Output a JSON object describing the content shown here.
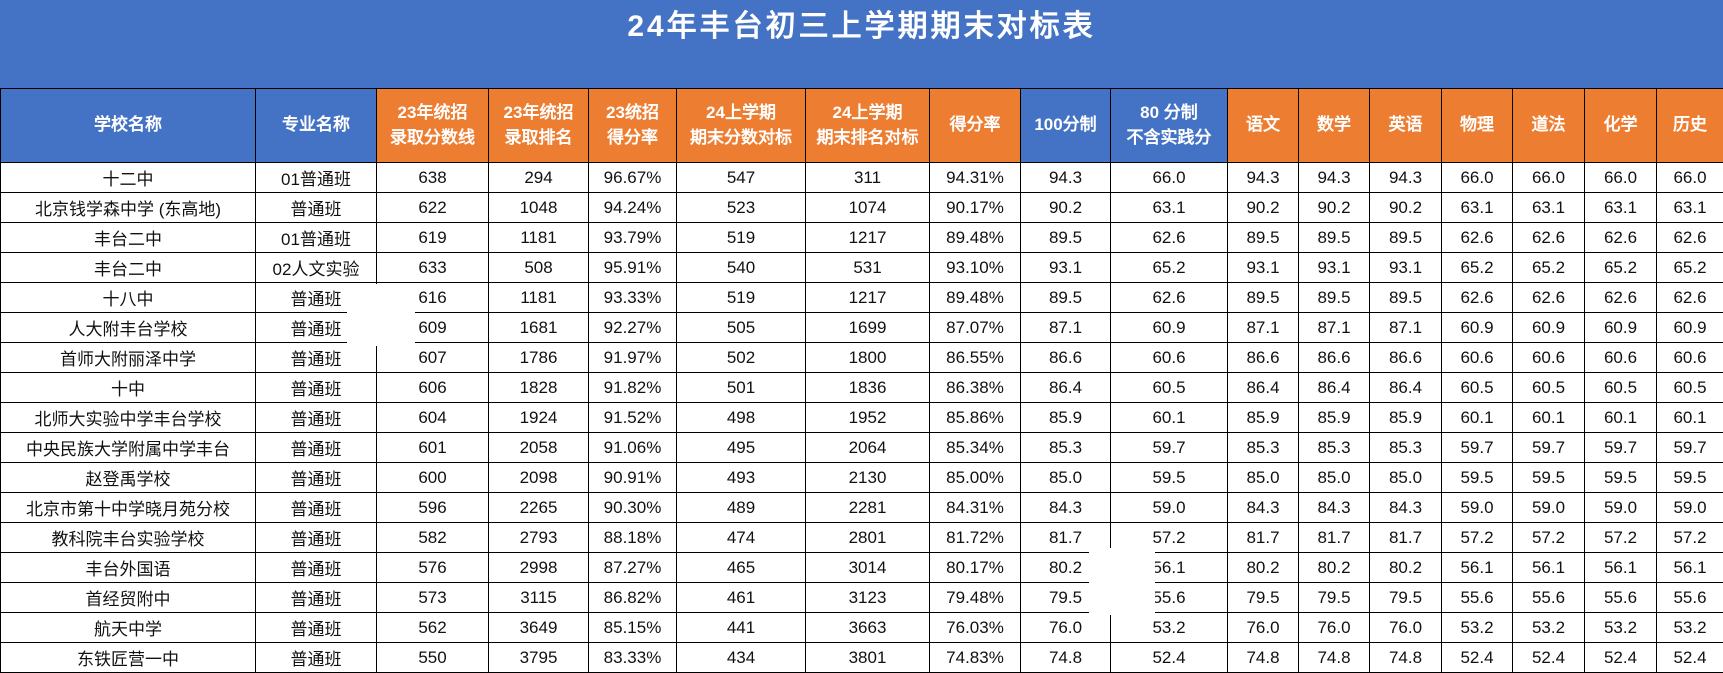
{
  "title": "24年丰台初三上学期期末对标表",
  "colors": {
    "header_blue": "#4472C4",
    "header_orange": "#ED7D31",
    "border": "#000000",
    "title_text": "#FFFFFF",
    "data_text": "#111111"
  },
  "table": {
    "columns": [
      {
        "label": "学校名称",
        "bg": "blue"
      },
      {
        "label": "专业名称",
        "bg": "blue"
      },
      {
        "label": "23年统招\n录取分数线",
        "bg": "orange"
      },
      {
        "label": "23年统招\n录取排名",
        "bg": "orange"
      },
      {
        "label": "23统招\n得分率",
        "bg": "orange"
      },
      {
        "label": "24上学期\n期末分数对标",
        "bg": "orange"
      },
      {
        "label": "24上学期\n期末排名对标",
        "bg": "orange"
      },
      {
        "label": "得分率",
        "bg": "orange"
      },
      {
        "label": "100分制",
        "bg": "blue"
      },
      {
        "label": "80 分制\n不含实践分",
        "bg": "blue"
      },
      {
        "label": "语文",
        "bg": "orange"
      },
      {
        "label": "数学",
        "bg": "orange"
      },
      {
        "label": "英语",
        "bg": "orange"
      },
      {
        "label": "物理",
        "bg": "orange"
      },
      {
        "label": "道法",
        "bg": "orange"
      },
      {
        "label": "化学",
        "bg": "orange"
      },
      {
        "label": "历史",
        "bg": "orange"
      }
    ],
    "rows": [
      [
        "十二中",
        "01普通班",
        "638",
        "294",
        "96.67%",
        "547",
        "311",
        "94.31%",
        "94.3",
        "66.0",
        "94.3",
        "94.3",
        "94.3",
        "66.0",
        "66.0",
        "66.0",
        "66.0"
      ],
      [
        "北京钱学森中学 (东高地)",
        "普通班",
        "622",
        "1048",
        "94.24%",
        "523",
        "1074",
        "90.17%",
        "90.2",
        "63.1",
        "90.2",
        "90.2",
        "90.2",
        "63.1",
        "63.1",
        "63.1",
        "63.1"
      ],
      [
        "丰台二中",
        "01普通班",
        "619",
        "1181",
        "93.79%",
        "519",
        "1217",
        "89.48%",
        "89.5",
        "62.6",
        "89.5",
        "89.5",
        "89.5",
        "62.6",
        "62.6",
        "62.6",
        "62.6"
      ],
      [
        "丰台二中",
        "02人文实验",
        "633",
        "508",
        "95.91%",
        "540",
        "531",
        "93.10%",
        "93.1",
        "65.2",
        "93.1",
        "93.1",
        "93.1",
        "65.2",
        "65.2",
        "65.2",
        "65.2"
      ],
      [
        "十八中",
        "普通班",
        "616",
        "1181",
        "93.33%",
        "519",
        "1217",
        "89.48%",
        "89.5",
        "62.6",
        "89.5",
        "89.5",
        "89.5",
        "62.6",
        "62.6",
        "62.6",
        "62.6"
      ],
      [
        "人大附丰台学校",
        "普通班",
        "609",
        "1681",
        "92.27%",
        "505",
        "1699",
        "87.07%",
        "87.1",
        "60.9",
        "87.1",
        "87.1",
        "87.1",
        "60.9",
        "60.9",
        "60.9",
        "60.9"
      ],
      [
        "首师大附丽泽中学",
        "普通班",
        "607",
        "1786",
        "91.97%",
        "502",
        "1800",
        "86.55%",
        "86.6",
        "60.6",
        "86.6",
        "86.6",
        "86.6",
        "60.6",
        "60.6",
        "60.6",
        "60.6"
      ],
      [
        "十中",
        "普通班",
        "606",
        "1828",
        "91.82%",
        "501",
        "1836",
        "86.38%",
        "86.4",
        "60.5",
        "86.4",
        "86.4",
        "86.4",
        "60.5",
        "60.5",
        "60.5",
        "60.5"
      ],
      [
        "北师大实验中学丰台学校",
        "普通班",
        "604",
        "1924",
        "91.52%",
        "498",
        "1952",
        "85.86%",
        "85.9",
        "60.1",
        "85.9",
        "85.9",
        "85.9",
        "60.1",
        "60.1",
        "60.1",
        "60.1"
      ],
      [
        "中央民族大学附属中学丰台",
        "普通班",
        "601",
        "2058",
        "91.06%",
        "495",
        "2064",
        "85.34%",
        "85.3",
        "59.7",
        "85.3",
        "85.3",
        "85.3",
        "59.7",
        "59.7",
        "59.7",
        "59.7"
      ],
      [
        "赵登禹学校",
        "普通班",
        "600",
        "2098",
        "90.91%",
        "493",
        "2130",
        "85.00%",
        "85.0",
        "59.5",
        "85.0",
        "85.0",
        "85.0",
        "59.5",
        "59.5",
        "59.5",
        "59.5"
      ],
      [
        "北京市第十中学晓月苑分校",
        "普通班",
        "596",
        "2265",
        "90.30%",
        "489",
        "2281",
        "84.31%",
        "84.3",
        "59.0",
        "84.3",
        "84.3",
        "84.3",
        "59.0",
        "59.0",
        "59.0",
        "59.0"
      ],
      [
        "教科院丰台实验学校",
        "普通班",
        "582",
        "2793",
        "88.18%",
        "474",
        "2801",
        "81.72%",
        "81.7",
        "57.2",
        "81.7",
        "81.7",
        "81.7",
        "57.2",
        "57.2",
        "57.2",
        "57.2"
      ],
      [
        "丰台外国语",
        "普通班",
        "576",
        "2998",
        "87.27%",
        "465",
        "3014",
        "80.17%",
        "80.2",
        "56.1",
        "80.2",
        "80.2",
        "80.2",
        "56.1",
        "56.1",
        "56.1",
        "56.1"
      ],
      [
        "首经贸附中",
        "普通班",
        "573",
        "3115",
        "86.82%",
        "461",
        "3123",
        "79.48%",
        "79.5",
        "55.6",
        "79.5",
        "79.5",
        "79.5",
        "55.6",
        "55.6",
        "55.6",
        "55.6"
      ],
      [
        "航天中学",
        "普通班",
        "562",
        "3649",
        "85.15%",
        "441",
        "3663",
        "76.03%",
        "76.0",
        "53.2",
        "76.0",
        "76.0",
        "76.0",
        "53.2",
        "53.2",
        "53.2",
        "53.2"
      ],
      [
        "东铁匠营一中",
        "普通班",
        "550",
        "3795",
        "83.33%",
        "434",
        "3801",
        "74.83%",
        "74.8",
        "52.4",
        "74.8",
        "74.8",
        "74.8",
        "52.4",
        "52.4",
        "52.4",
        "52.4"
      ]
    ]
  }
}
